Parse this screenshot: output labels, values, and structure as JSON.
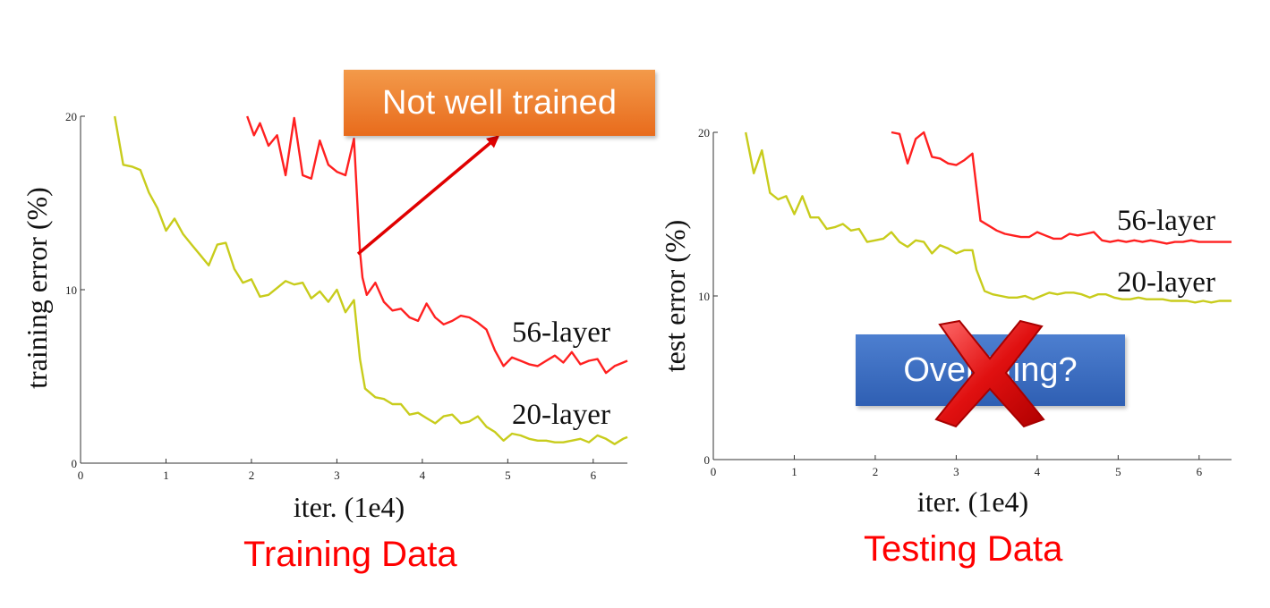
{
  "chart_data": [
    {
      "type": "line",
      "title": "",
      "xlabel": "iter. (1e4)",
      "ylabel": "training error (%)",
      "xlim": [
        0,
        6.4
      ],
      "ylim": [
        0,
        20
      ],
      "xticks": [
        "0",
        "1",
        "2",
        "3",
        "4",
        "5",
        "6"
      ],
      "yticks": [
        "0",
        "10",
        "20"
      ],
      "caption": "Training Data",
      "callout": "Not well trained",
      "series": [
        {
          "name": "56-layer",
          "color": "#ff2020",
          "x": [
            1.95,
            2.03,
            2.1,
            2.2,
            2.3,
            2.4,
            2.5,
            2.6,
            2.7,
            2.8,
            2.9,
            3.0,
            3.1,
            3.2,
            3.27,
            3.3,
            3.35,
            3.45,
            3.55,
            3.65,
            3.75,
            3.85,
            3.95,
            4.05,
            4.15,
            4.25,
            4.35,
            4.45,
            4.55,
            4.65,
            4.75,
            4.85,
            4.95,
            5.05,
            5.15,
            5.25,
            5.35,
            5.45,
            5.55,
            5.65,
            5.75,
            5.85,
            5.95,
            6.05,
            6.15,
            6.25,
            6.35,
            6.4
          ],
          "y": [
            20,
            18.9,
            19.6,
            18.3,
            18.9,
            16.6,
            19.9,
            16.6,
            16.4,
            18.6,
            17.2,
            16.8,
            16.6,
            18.7,
            12.2,
            10.7,
            9.7,
            10.4,
            9.3,
            8.8,
            8.9,
            8.4,
            8.2,
            9.2,
            8.4,
            8.0,
            8.2,
            8.5,
            8.4,
            8.1,
            7.7,
            6.5,
            5.6,
            6.1,
            5.9,
            5.7,
            5.6,
            5.9,
            6.2,
            5.8,
            6.4,
            5.7,
            5.9,
            6.0,
            5.2,
            5.6,
            5.8,
            5.9
          ]
        },
        {
          "name": "20-layer",
          "color": "#c8cc1c",
          "x": [
            0.4,
            0.5,
            0.6,
            0.7,
            0.8,
            0.9,
            1.0,
            1.1,
            1.2,
            1.3,
            1.4,
            1.5,
            1.6,
            1.7,
            1.8,
            1.9,
            2.0,
            2.1,
            2.2,
            2.3,
            2.4,
            2.5,
            2.6,
            2.7,
            2.8,
            2.9,
            3.0,
            3.1,
            3.2,
            3.27,
            3.33,
            3.45,
            3.55,
            3.65,
            3.75,
            3.85,
            3.95,
            4.05,
            4.15,
            4.25,
            4.35,
            4.45,
            4.55,
            4.65,
            4.75,
            4.85,
            4.95,
            5.05,
            5.15,
            5.25,
            5.35,
            5.45,
            5.55,
            5.65,
            5.75,
            5.85,
            5.95,
            6.05,
            6.15,
            6.25,
            6.35,
            6.4
          ],
          "y": [
            20,
            17.2,
            17.1,
            16.9,
            15.6,
            14.7,
            13.4,
            14.1,
            13.2,
            12.6,
            12.0,
            11.4,
            12.6,
            12.7,
            11.2,
            10.4,
            10.6,
            9.6,
            9.7,
            10.1,
            10.5,
            10.3,
            10.4,
            9.5,
            9.9,
            9.3,
            10.0,
            8.7,
            9.4,
            6.0,
            4.3,
            3.8,
            3.7,
            3.4,
            3.4,
            2.8,
            2.9,
            2.6,
            2.3,
            2.7,
            2.8,
            2.3,
            2.4,
            2.7,
            2.1,
            1.8,
            1.3,
            1.7,
            1.6,
            1.4,
            1.3,
            1.3,
            1.2,
            1.2,
            1.3,
            1.4,
            1.2,
            1.6,
            1.4,
            1.1,
            1.4,
            1.5
          ]
        }
      ]
    },
    {
      "type": "line",
      "title": "",
      "xlabel": "iter. (1e4)",
      "ylabel": "test error (%)",
      "xlim": [
        0,
        6.4
      ],
      "ylim": [
        0,
        20
      ],
      "xticks": [
        "0",
        "1",
        "2",
        "3",
        "4",
        "5",
        "6"
      ],
      "yticks": [
        "0",
        "10",
        "20"
      ],
      "caption": "Testing Data",
      "callout": "Overfitting?",
      "series": [
        {
          "name": "56-layer",
          "color": "#ff2020",
          "x": [
            2.2,
            2.3,
            2.4,
            2.5,
            2.6,
            2.7,
            2.8,
            2.9,
            3.0,
            3.1,
            3.2,
            3.3,
            3.4,
            3.5,
            3.6,
            3.7,
            3.8,
            3.9,
            4.0,
            4.1,
            4.2,
            4.3,
            4.4,
            4.5,
            4.6,
            4.7,
            4.8,
            4.9,
            5.0,
            5.1,
            5.2,
            5.3,
            5.4,
            5.5,
            5.6,
            5.7,
            5.8,
            5.9,
            6.0,
            6.1,
            6.2,
            6.3,
            6.4
          ],
          "y": [
            20,
            19.9,
            18.1,
            19.6,
            20.0,
            18.5,
            18.4,
            18.1,
            18.0,
            18.3,
            18.7,
            14.6,
            14.3,
            14.0,
            13.8,
            13.7,
            13.6,
            13.6,
            13.9,
            13.7,
            13.5,
            13.5,
            13.8,
            13.7,
            13.8,
            13.9,
            13.4,
            13.3,
            13.4,
            13.3,
            13.4,
            13.3,
            13.4,
            13.3,
            13.2,
            13.3,
            13.3,
            13.4,
            13.3,
            13.3,
            13.3,
            13.3,
            13.3
          ]
        },
        {
          "name": "20-layer",
          "color": "#c8cc1c",
          "x": [
            0.4,
            0.5,
            0.6,
            0.7,
            0.8,
            0.9,
            1.0,
            1.1,
            1.2,
            1.3,
            1.4,
            1.5,
            1.6,
            1.7,
            1.8,
            1.9,
            2.0,
            2.1,
            2.2,
            2.3,
            2.4,
            2.5,
            2.6,
            2.7,
            2.8,
            2.9,
            3.0,
            3.1,
            3.2,
            3.25,
            3.35,
            3.45,
            3.55,
            3.65,
            3.75,
            3.85,
            3.95,
            4.05,
            4.15,
            4.25,
            4.35,
            4.45,
            4.55,
            4.65,
            4.75,
            4.85,
            4.95,
            5.05,
            5.15,
            5.25,
            5.35,
            5.45,
            5.55,
            5.65,
            5.75,
            5.85,
            5.95,
            6.05,
            6.15,
            6.25,
            6.35,
            6.4
          ],
          "y": [
            20,
            17.5,
            18.9,
            16.3,
            15.9,
            16.1,
            15.0,
            16.1,
            14.8,
            14.8,
            14.1,
            14.2,
            14.4,
            14.0,
            14.1,
            13.3,
            13.4,
            13.5,
            13.9,
            13.3,
            13.0,
            13.4,
            13.3,
            12.6,
            13.1,
            12.9,
            12.6,
            12.8,
            12.8,
            11.6,
            10.3,
            10.1,
            10.0,
            9.9,
            9.9,
            10.0,
            9.8,
            10.0,
            10.2,
            10.1,
            10.2,
            10.2,
            10.1,
            9.9,
            10.1,
            10.1,
            9.9,
            9.8,
            9.8,
            9.9,
            9.8,
            9.8,
            9.8,
            9.7,
            9.7,
            9.7,
            9.6,
            9.7,
            9.6,
            9.7,
            9.7,
            9.7
          ]
        }
      ]
    }
  ]
}
